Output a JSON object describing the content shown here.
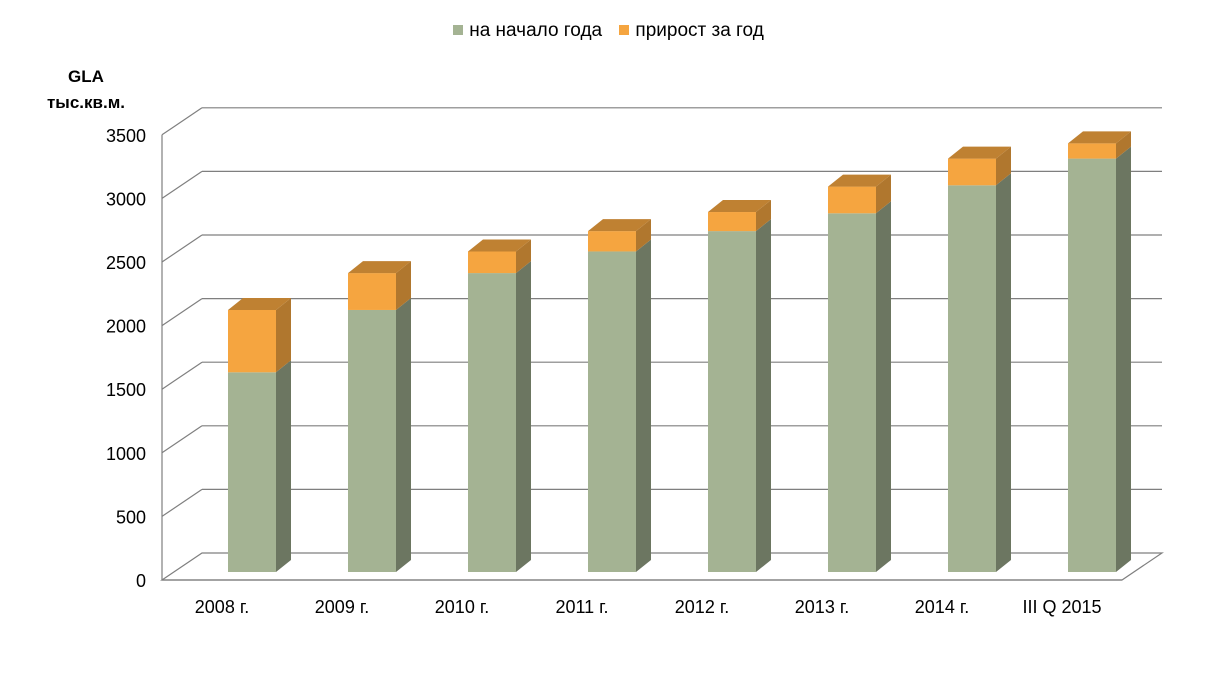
{
  "legend": {
    "series1": "на начало года",
    "series2": "прирост за год"
  },
  "ylabel": {
    "line1": "GLA",
    "line2": "тыс.кв.м."
  },
  "colors": {
    "series1": "#a4b393",
    "series2": "#f5a540",
    "grid": "#7f7f7f"
  },
  "chart_data": {
    "type": "bar",
    "stacked": true,
    "three_d": true,
    "categories": [
      "2008 г.",
      "2009 г.",
      "2010 г.",
      "2011 г.",
      "2012 г.",
      "2013 г.",
      "2014 г.",
      "III  Q 2015"
    ],
    "series": [
      {
        "name": "на начало года",
        "values": [
          1570,
          2060,
          2350,
          2520,
          2680,
          2820,
          3040,
          3250
        ]
      },
      {
        "name": "прирост за год",
        "values": [
          490,
          290,
          170,
          160,
          150,
          210,
          210,
          120
        ]
      }
    ],
    "xlabel": "",
    "ylabel": "GLA тыс.кв.м.",
    "ylim": [
      0,
      3500
    ],
    "yticks": [
      0,
      500,
      1000,
      1500,
      2000,
      2500,
      3000,
      3500
    ],
    "grid": true,
    "legend_position": "top"
  }
}
